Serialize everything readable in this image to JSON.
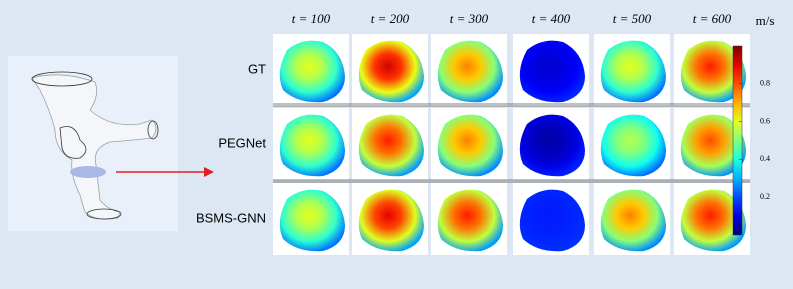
{
  "figure": {
    "columns": [
      "t = 100",
      "t = 200",
      "t = 300",
      "t = 400",
      "t = 500",
      "t = 600"
    ],
    "rows": [
      {
        "label": "GT",
        "values": [
          0.6,
          0.92,
          0.75,
          0.08,
          0.6,
          0.85
        ]
      },
      {
        "label": "PEGNet",
        "values": [
          0.6,
          0.85,
          0.75,
          0.04,
          0.55,
          0.8
        ]
      },
      {
        "label": "BSMS-GNN",
        "values": [
          0.6,
          0.9,
          0.85,
          0.15,
          0.75,
          0.85
        ]
      }
    ],
    "colorbar": {
      "label": "m/s",
      "lim": [
        0,
        1
      ],
      "ticks": [
        0.2,
        0.4,
        0.6,
        0.8
      ]
    }
  }
}
